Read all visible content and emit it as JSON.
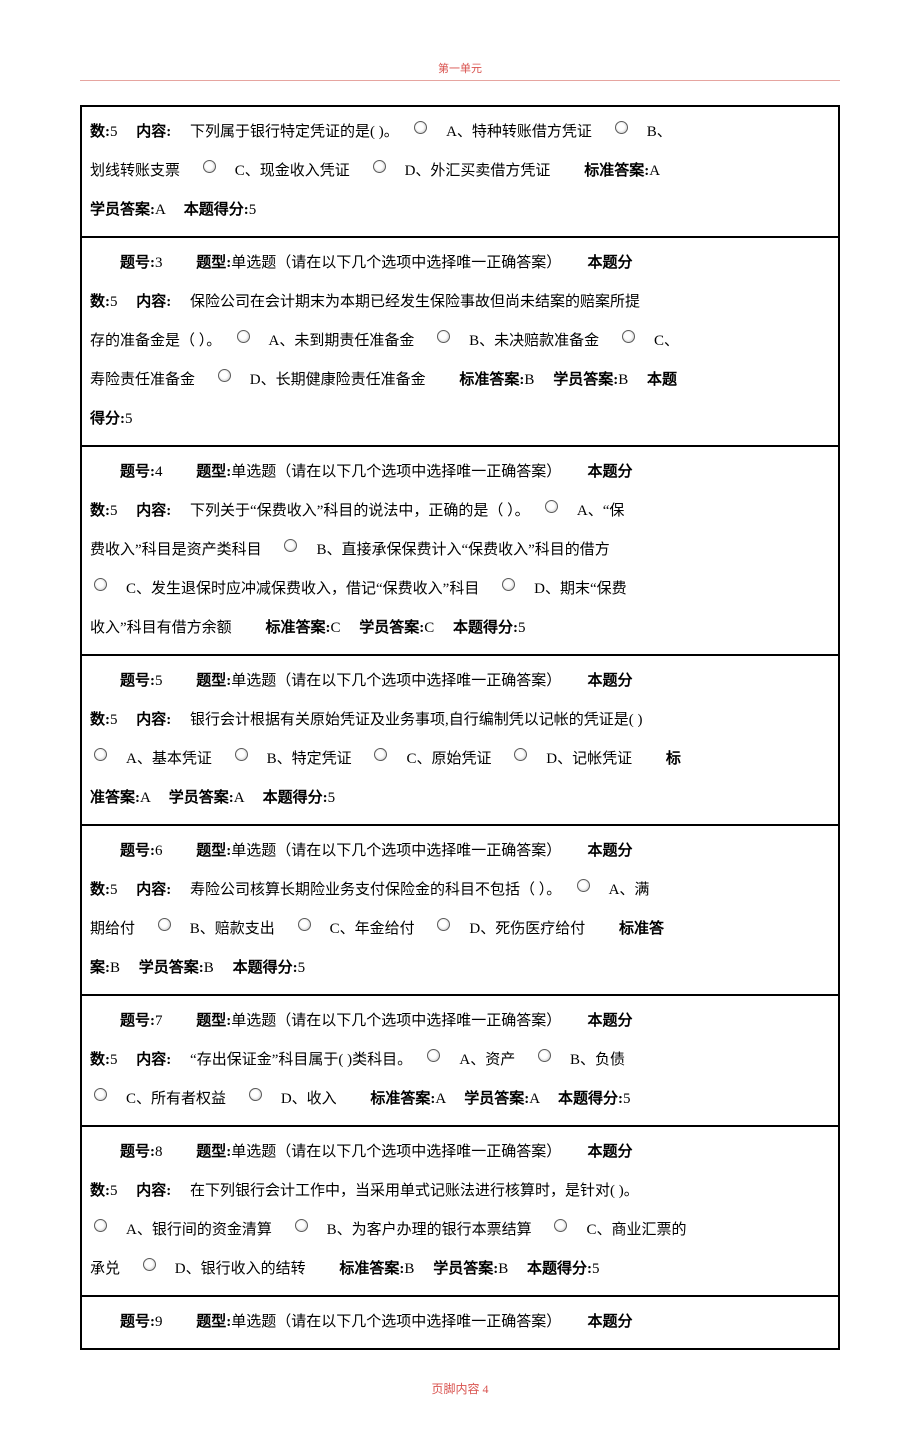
{
  "header": {
    "title": "第一单元"
  },
  "footer": {
    "label": "页脚内容",
    "page": "4"
  },
  "labels": {
    "question_no": "题号:",
    "question_type": "题型:",
    "points_prefix": "本题分",
    "points_suffix": "数:",
    "content": "内容:",
    "std_answer": "标准答案:",
    "stu_answer": "学员答案:",
    "score": "本题得分:",
    "type_text": "单选题（请在以下几个选项中选择唯一正确答案）"
  },
  "q2_tail": {
    "points": "5",
    "prompt": "下列属于银行特定凭证的是( )。",
    "optA": "A、特种转账借方凭证",
    "optB": "B、",
    "optB2": "划线转账支票",
    "optC": "C、现金收入凭证",
    "optD": "D、外汇买卖借方凭证",
    "std": "A",
    "stu": "A",
    "score": "5"
  },
  "q3": {
    "no": "3",
    "points": "5",
    "prompt": "保险公司在会计期末为本期已经发生保险事故但尚未结案的赔案所提",
    "prompt2": "存的准备金是（  ）。",
    "optA": "A、未到期责任准备金",
    "optB": "B、未决赔款准备金",
    "optC": "C、",
    "optC2": "寿险责任准备金",
    "optD": "D、长期健康险责任准备金",
    "std": "B",
    "stu": "B",
    "score": "5"
  },
  "q4": {
    "no": "4",
    "points": "5",
    "prompt": "下列关于“保费收入”科目的说法中，正确的是（  ）。",
    "optA": "A、“保",
    "optA2": "费收入”科目是资产类科目",
    "optB": "B、直接承保保费计入“保费收入”科目的借方",
    "optC": "C、发生退保时应冲减保费收入，借记“保费收入”科目",
    "optD": "D、期末“保费",
    "optD2": "收入”科目有借方余额",
    "std": "C",
    "stu": "C",
    "score": "5"
  },
  "q5": {
    "no": "5",
    "points": "5",
    "prompt": "银行会计根据有关原始凭证及业务事项,自行编制凭以记帐的凭证是( )",
    "optA": "A、基本凭证",
    "optB": "B、特定凭证",
    "optC": "C、原始凭证",
    "optD": "D、记帐凭证",
    "std": "A",
    "stu": "A",
    "score": "5",
    "std_label_split1": "标",
    "std_label_split2": "准答案:"
  },
  "q6": {
    "no": "6",
    "points": "5",
    "prompt": "寿险公司核算长期险业务支付保险金的科目不包括（  ）。",
    "optA": "A、满",
    "optA2": "期给付",
    "optB": "B、赔款支出",
    "optC": "C、年金给付",
    "optD": "D、死伤医疗给付",
    "std_label_split1": "标准答",
    "std_label_split2": "案:",
    "std": "B",
    "stu": "B",
    "score": "5"
  },
  "q7": {
    "no": "7",
    "points": "5",
    "prompt": "“存出保证金”科目属于(  )类科目。",
    "optA": "A、资产",
    "optB": "B、负债",
    "optC": "C、所有者权益",
    "optD": "D、收入",
    "std": "A",
    "stu": "A",
    "score": "5"
  },
  "q8": {
    "no": "8",
    "points": "5",
    "prompt": "在下列银行会计工作中，当采用单式记账法进行核算时，是针对( )。",
    "optA": "A、银行间的资金清算",
    "optB": "B、为客户办理的银行本票结算",
    "optC": "C、商业汇票的",
    "optC2": "承兑",
    "optD": "D、银行收入的结转",
    "std": "B",
    "stu": "B",
    "score": "5"
  },
  "q9": {
    "no": "9"
  }
}
